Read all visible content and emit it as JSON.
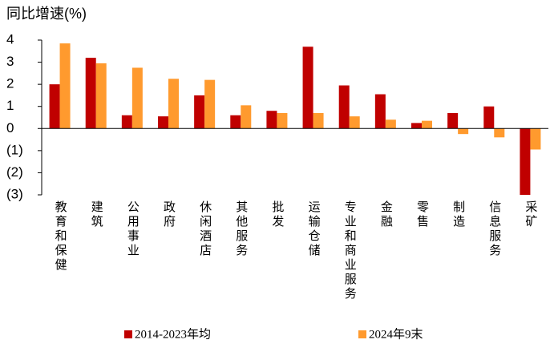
{
  "chart_data": {
    "type": "bar",
    "y_label": "同比增速(%)",
    "categories": [
      "教育和保健",
      "建筑",
      "公用事业",
      "政府",
      "休闲酒店",
      "其他服务",
      "批发",
      "运输仓储",
      "专业和商业服务",
      "金融",
      "零售",
      "制造",
      "信息服务",
      "采矿"
    ],
    "series": [
      {
        "name": "2014-2023年均",
        "color": "#c00000",
        "values": [
          2.0,
          3.2,
          0.6,
          0.55,
          1.5,
          0.6,
          0.8,
          3.7,
          1.95,
          1.55,
          0.25,
          0.7,
          1.0,
          -3.0
        ]
      },
      {
        "name": "2024年9末",
        "color": "#ff9a2e",
        "values": [
          3.85,
          2.95,
          2.75,
          2.25,
          2.2,
          1.05,
          0.7,
          0.7,
          0.55,
          0.4,
          0.35,
          -0.25,
          -0.4,
          -0.95
        ]
      }
    ],
    "ylim": [
      -3,
      4
    ],
    "yticks": [
      4,
      3,
      2,
      1,
      0,
      {
        "value": -1,
        "label": "(1)"
      },
      {
        "value": -2,
        "label": "(2)"
      },
      {
        "value": -3,
        "label": "(3)"
      }
    ],
    "negative_tick_color": "#e00000"
  }
}
